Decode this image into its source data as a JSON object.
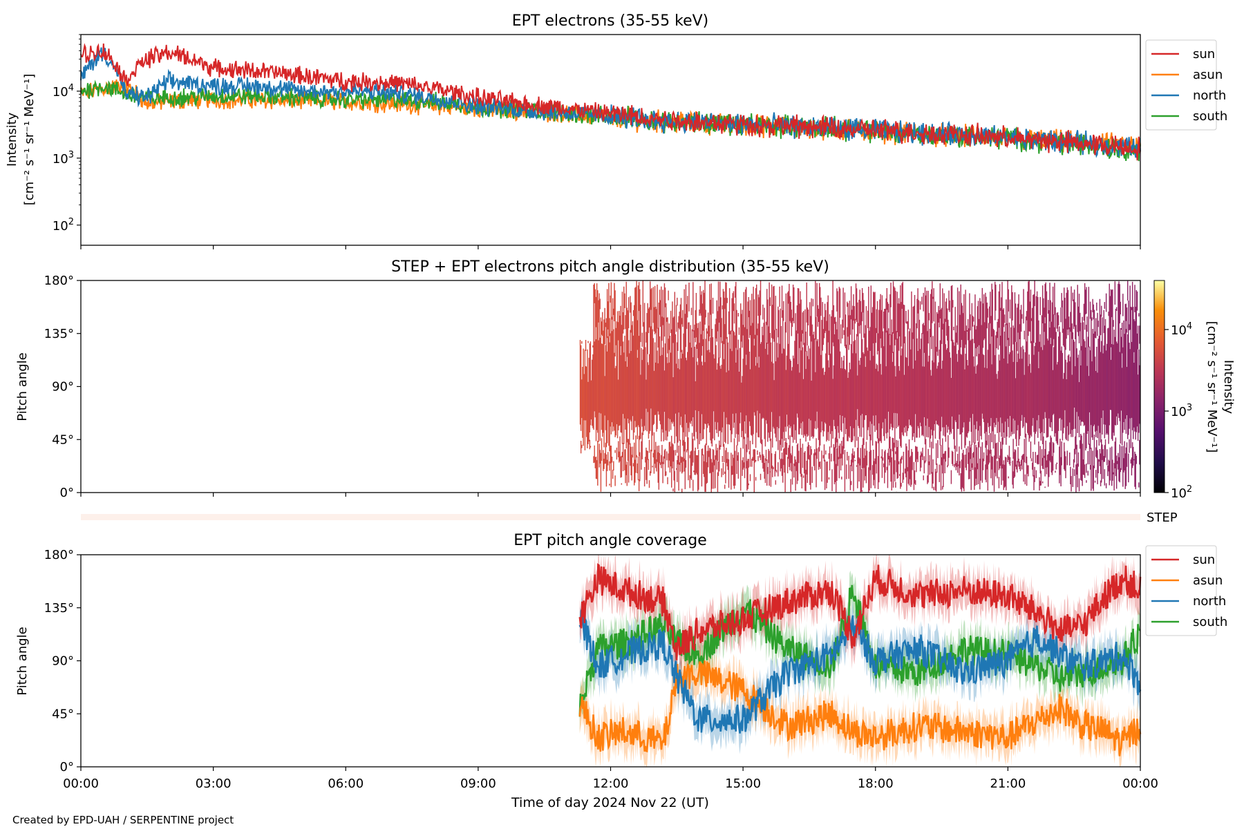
{
  "footer": "Created by EPD-UAH / SERPENTINE project",
  "chart_data": [
    {
      "type": "line",
      "title": "EPT electrons (35-55 keV)",
      "ylabel_line1": "Intensity",
      "ylabel_line2": "[cm⁻² s⁻¹ sr⁻¹ MeV⁻¹]",
      "yscale": "log",
      "ylim": [
        50,
        70000
      ],
      "yticks": [
        {
          "value": 100,
          "base": "10",
          "exp": "2"
        },
        {
          "value": 1000,
          "base": "10",
          "exp": "3"
        },
        {
          "value": 10000,
          "base": "10",
          "exp": "4"
        }
      ],
      "x": [
        0,
        0.5,
        1,
        1.5,
        2,
        3,
        4,
        5,
        6,
        7,
        8,
        9,
        10,
        11,
        12,
        13,
        14,
        15,
        16,
        17,
        18,
        19,
        20,
        21,
        22,
        23,
        24
      ],
      "series": [
        {
          "name": "sun",
          "color": "#d62728",
          "values": [
            35000,
            40000,
            14000,
            30000,
            38000,
            22000,
            20000,
            17000,
            14000,
            13500,
            11000,
            8000,
            6500,
            5500,
            4600,
            3900,
            3500,
            3200,
            3000,
            2800,
            2600,
            2400,
            2200,
            2000,
            1800,
            1600,
            1400
          ]
        },
        {
          "name": "asun",
          "color": "#ff7f0e",
          "values": [
            9000,
            11000,
            12000,
            6500,
            7000,
            7500,
            7300,
            7200,
            7000,
            6500,
            6000,
            5500,
            5000,
            4600,
            4000,
            3600,
            3300,
            3100,
            2900,
            2700,
            2500,
            2300,
            2100,
            1950,
            1800,
            1650,
            1500
          ]
        },
        {
          "name": "north",
          "color": "#1f77b4",
          "values": [
            15000,
            38000,
            9000,
            8000,
            14000,
            12000,
            12000,
            10000,
            10000,
            9500,
            8000,
            6000,
            5200,
            4800,
            4200,
            3700,
            3400,
            3200,
            3000,
            2800,
            2600,
            2400,
            2200,
            2000,
            1800,
            1600,
            1400
          ]
        },
        {
          "name": "south",
          "color": "#2ca02c",
          "values": [
            10000,
            12000,
            9000,
            8000,
            8000,
            8500,
            8500,
            8000,
            7500,
            7500,
            7000,
            5800,
            5200,
            4700,
            4100,
            3700,
            3400,
            3200,
            3000,
            2800,
            2500,
            2300,
            2100,
            1950,
            1750,
            1500,
            1300
          ]
        }
      ],
      "legend": [
        "sun",
        "asun",
        "north",
        "south"
      ],
      "legend_position": "right, outside top"
    },
    {
      "type": "heatmap",
      "title": "STEP + EPT electrons pitch angle distribution (35-55 keV)",
      "ylabel": "Pitch angle",
      "ylim": [
        0,
        180
      ],
      "yticks": [
        "0°",
        "45°",
        "90°",
        "135°",
        "180°"
      ],
      "data_start_hour": 11.3,
      "colorbar": {
        "label_line1": "Intensity",
        "label_line2": "[cm⁻² s⁻¹ sr⁻¹ MeV⁻¹]",
        "scale": "log",
        "range": [
          100,
          40000
        ],
        "ticks": [
          {
            "value": 100,
            "base": "10",
            "exp": "2"
          },
          {
            "value": 1000,
            "base": "10",
            "exp": "3"
          },
          {
            "value": 10000,
            "base": "10",
            "exp": "4"
          }
        ],
        "colormap": "inferno"
      },
      "intensity_by_hour": [
        [
          11.3,
          5500
        ],
        [
          13.3,
          4200
        ],
        [
          16,
          3400
        ],
        [
          19,
          2800
        ],
        [
          21.5,
          2200
        ],
        [
          24,
          1400
        ]
      ]
    },
    {
      "type": "heatmap",
      "label": "STEP",
      "note": "empty strip"
    },
    {
      "type": "line",
      "title": "EPT pitch angle coverage",
      "ylabel": "Pitch angle",
      "ylim": [
        0,
        180
      ],
      "yticks": [
        "0°",
        "45°",
        "90°",
        "135°",
        "180°"
      ],
      "xlabel": "Time of day 2024 Nov 22 (UT)",
      "xlim": [
        0,
        24
      ],
      "xticks": [
        "00:00",
        "03:00",
        "06:00",
        "09:00",
        "12:00",
        "15:00",
        "18:00",
        "21:00",
        "00:00"
      ],
      "x": [
        11.3,
        11.7,
        12.3,
        13.2,
        13.5,
        14,
        15,
        16,
        17,
        17.5,
        18,
        19,
        20,
        21,
        21.7,
        22.2,
        22.7,
        23.2,
        23.6,
        24
      ],
      "series": [
        {
          "name": "sun",
          "color": "#d62728",
          "values": [
            125,
            160,
            150,
            140,
            100,
            115,
            125,
            140,
            150,
            110,
            160,
            145,
            150,
            145,
            130,
            115,
            120,
            145,
            160,
            150
          ]
        },
        {
          "name": "asun",
          "color": "#ff7f0e",
          "values": [
            55,
            25,
            30,
            20,
            75,
            80,
            65,
            35,
            45,
            30,
            25,
            35,
            30,
            25,
            40,
            50,
            35,
            30,
            20,
            35
          ]
        },
        {
          "name": "north",
          "color": "#1f77b4",
          "values": [
            130,
            85,
            95,
            105,
            75,
            40,
            40,
            80,
            95,
            120,
            90,
            100,
            80,
            90,
            110,
            95,
            85,
            90,
            95,
            70
          ]
        },
        {
          "name": "south",
          "color": "#2ca02c",
          "values": [
            50,
            100,
            105,
            120,
            105,
            95,
            135,
            100,
            85,
            150,
            85,
            80,
            100,
            95,
            85,
            75,
            80,
            85,
            90,
            115
          ]
        }
      ],
      "legend": [
        "sun",
        "asun",
        "north",
        "south"
      ],
      "legend_position": "right, outside top"
    }
  ]
}
